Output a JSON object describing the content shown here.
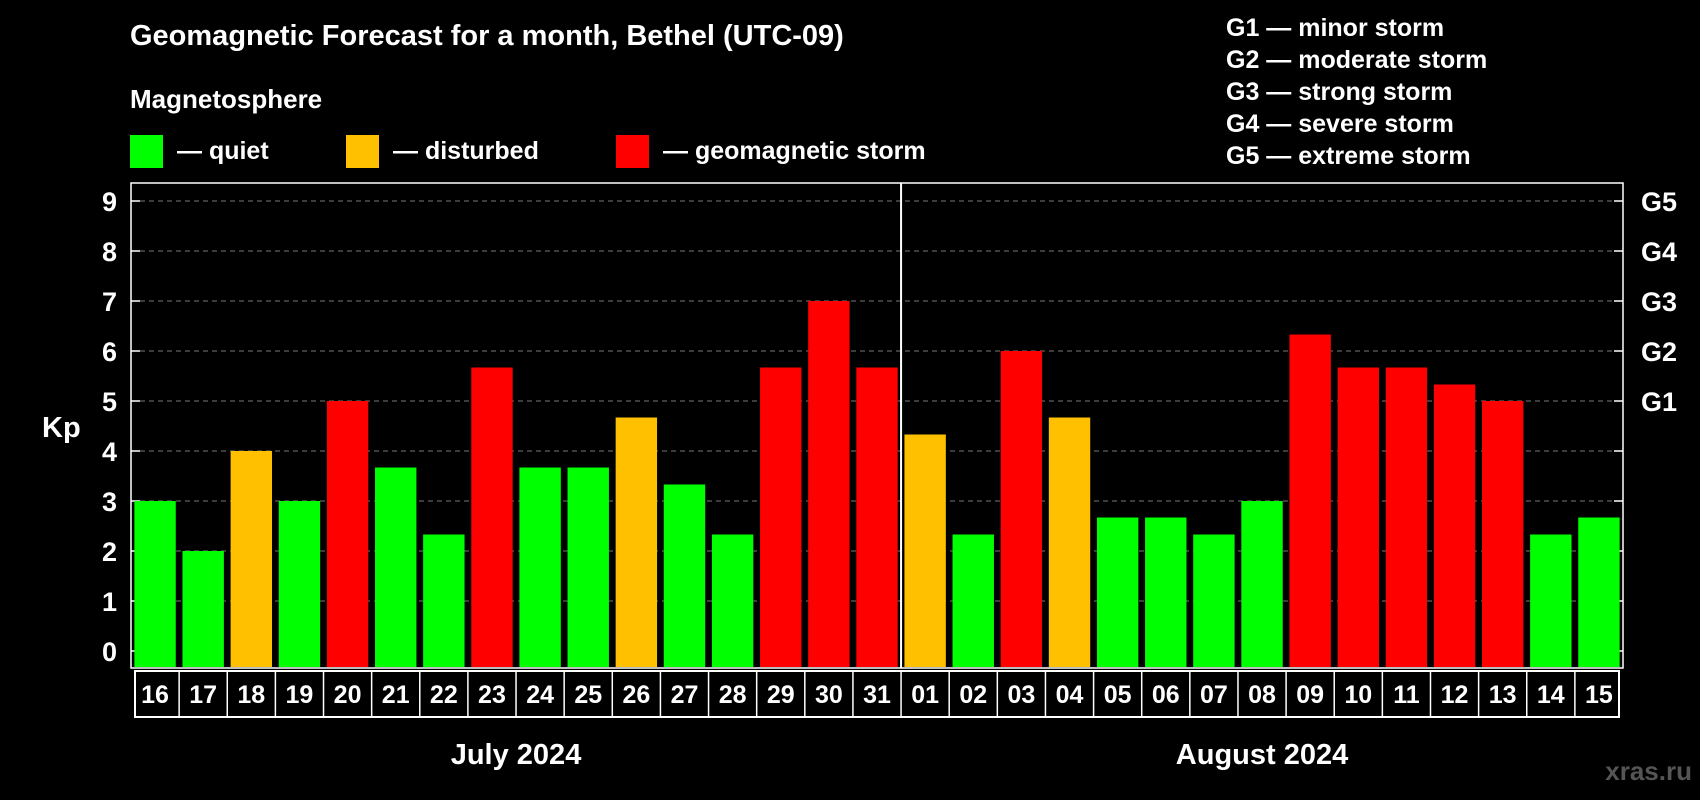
{
  "title": "Geomagnetic Forecast for a month, Bethel (UTC-09)",
  "subtitle": "Magnetosphere",
  "legend": [
    {
      "label": "— quiet",
      "color": "#00ff00"
    },
    {
      "label": "— disturbed",
      "color": "#ffc000"
    },
    {
      "label": "— geomagnetic storm",
      "color": "#ff0000"
    }
  ],
  "storm_levels": [
    {
      "label": "G1 — minor storm"
    },
    {
      "label": "G2 — moderate storm"
    },
    {
      "label": "G3 — strong storm"
    },
    {
      "label": "G4 — severe storm"
    },
    {
      "label": "G5 — extreme storm"
    }
  ],
  "watermark": "xras.ru",
  "chart_data": {
    "type": "bar",
    "ylabel": "Kp",
    "ylim": [
      0,
      9
    ],
    "yticks": [
      0,
      1,
      2,
      3,
      4,
      5,
      6,
      7,
      8,
      9
    ],
    "y2ticks": [
      {
        "value": 5,
        "label": "G1"
      },
      {
        "value": 6,
        "label": "G2"
      },
      {
        "value": 7,
        "label": "G3"
      },
      {
        "value": 8,
        "label": "G4"
      },
      {
        "value": 9,
        "label": "G5"
      }
    ],
    "grid": "dashed horizontal",
    "categories": [
      "16",
      "17",
      "18",
      "19",
      "20",
      "21",
      "22",
      "23",
      "24",
      "25",
      "26",
      "27",
      "28",
      "29",
      "30",
      "31",
      "01",
      "02",
      "03",
      "04",
      "05",
      "06",
      "07",
      "08",
      "09",
      "10",
      "11",
      "12",
      "13",
      "14",
      "15"
    ],
    "values": [
      3,
      2,
      4,
      3,
      5,
      3.67,
      2.33,
      5.67,
      3.67,
      3.67,
      4.67,
      3.33,
      2.33,
      5.67,
      7,
      5.67,
      4.33,
      2.33,
      6,
      4.67,
      2.67,
      2.67,
      2.33,
      3,
      6.33,
      5.67,
      5.67,
      5.33,
      5,
      2.33,
      2.67
    ],
    "colors": [
      "#00ff00",
      "#00ff00",
      "#ffc000",
      "#00ff00",
      "#ff0000",
      "#00ff00",
      "#00ff00",
      "#ff0000",
      "#00ff00",
      "#00ff00",
      "#ffc000",
      "#00ff00",
      "#00ff00",
      "#ff0000",
      "#ff0000",
      "#ff0000",
      "#ffc000",
      "#00ff00",
      "#ff0000",
      "#ffc000",
      "#00ff00",
      "#00ff00",
      "#00ff00",
      "#00ff00",
      "#ff0000",
      "#ff0000",
      "#ff0000",
      "#ff0000",
      "#ff0000",
      "#00ff00",
      "#00ff00"
    ],
    "months": [
      {
        "label": "July 2024",
        "count": 16
      },
      {
        "label": "August 2024",
        "count": 15
      }
    ]
  }
}
